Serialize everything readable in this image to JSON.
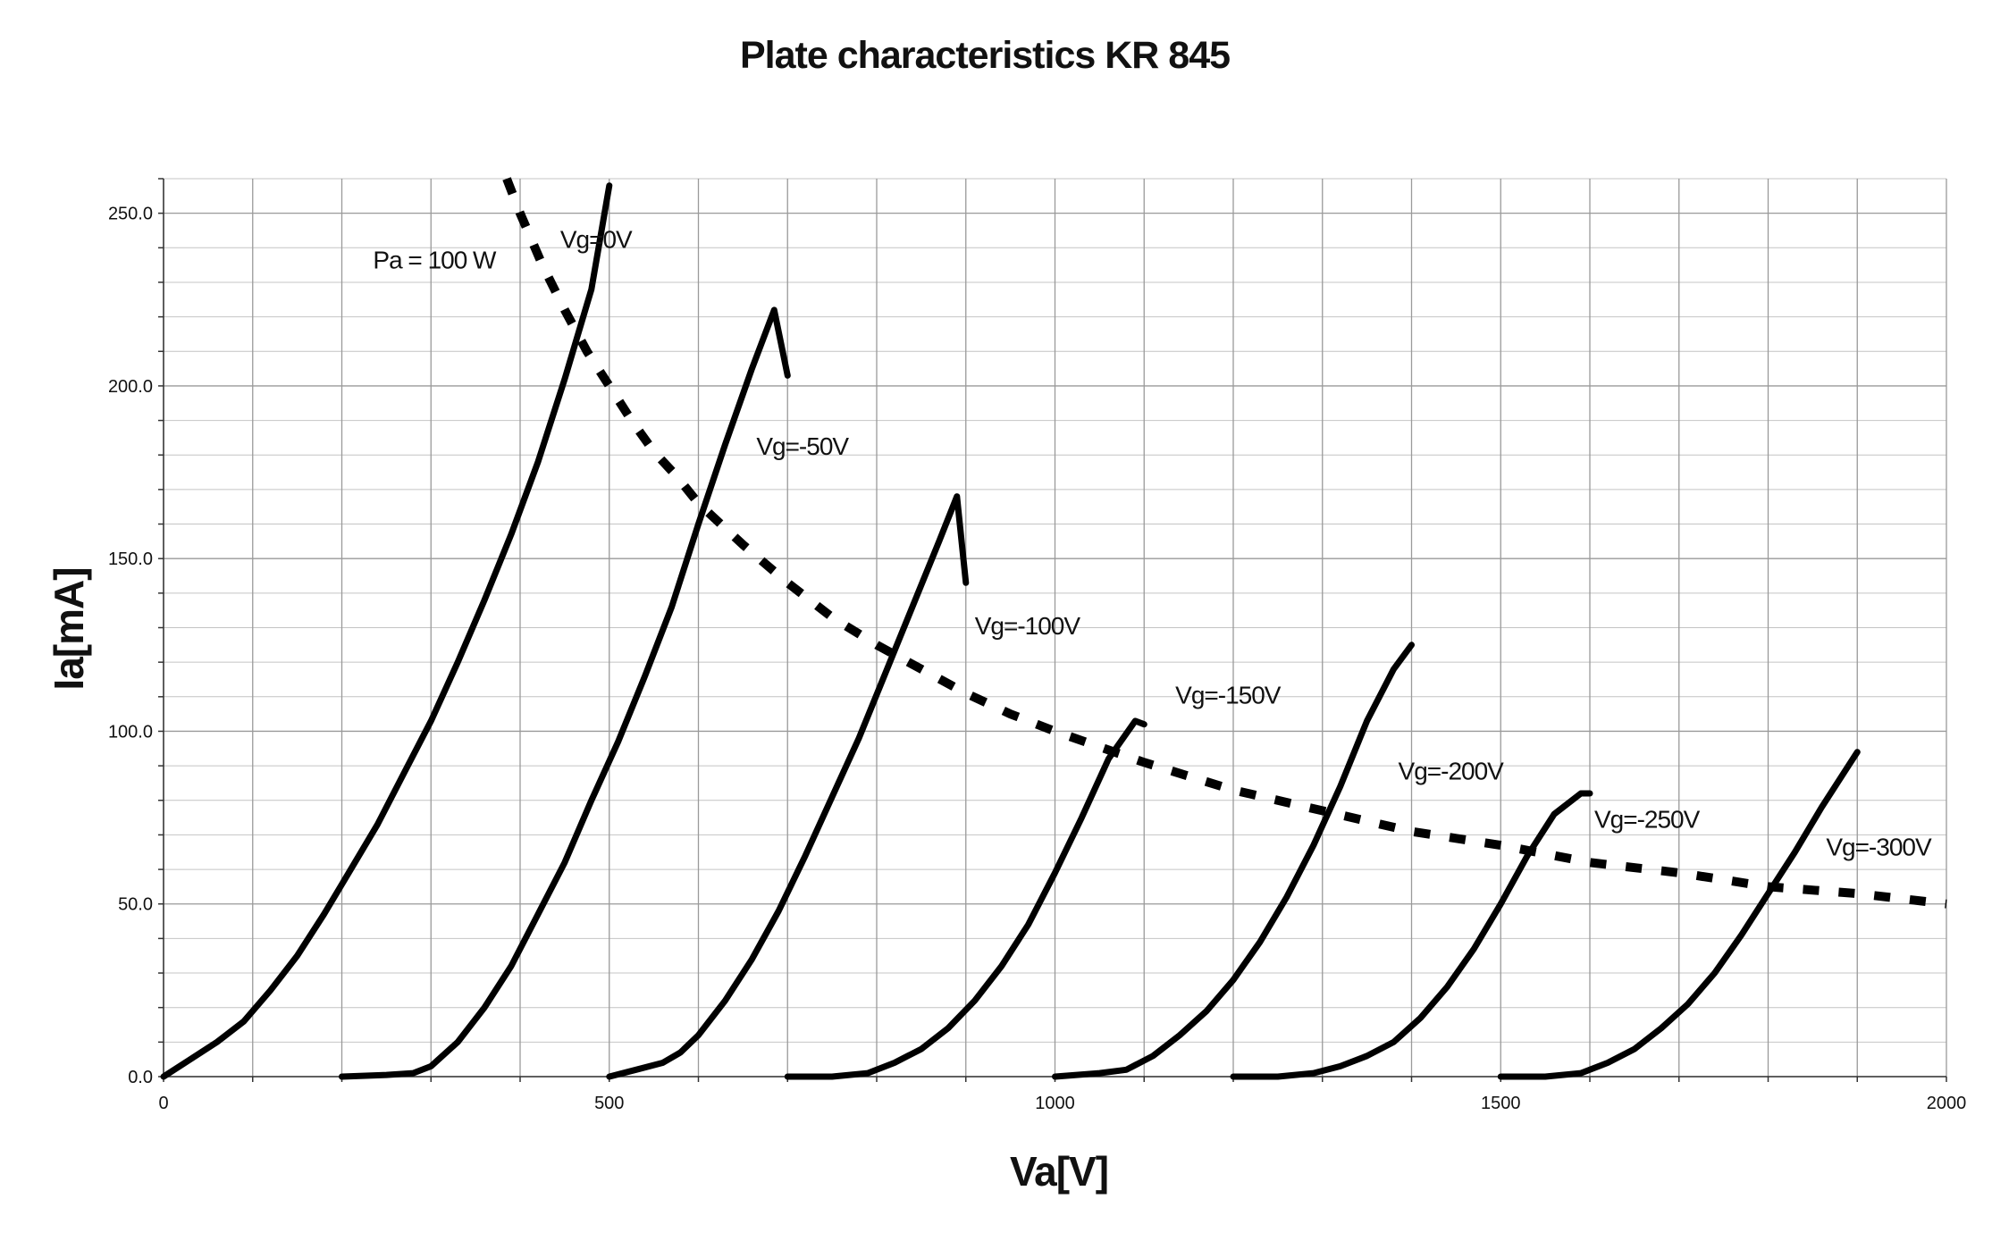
{
  "chart_data": {
    "type": "line",
    "title": "Plate characteristics KR 845",
    "xlabel": "Va[V]",
    "ylabel": "Ia[mA]",
    "xlim": [
      0,
      2000
    ],
    "ylim": [
      0,
      260
    ],
    "x_ticks": [
      {
        "value": 0,
        "label": "0"
      },
      {
        "value": 500,
        "label": "500"
      },
      {
        "value": 1000,
        "label": "1000"
      },
      {
        "value": 1500,
        "label": "1500"
      },
      {
        "value": 2000,
        "label": "2000"
      }
    ],
    "y_ticks": [
      {
        "value": 0,
        "label": "0.0"
      },
      {
        "value": 50,
        "label": "50.0"
      },
      {
        "value": 100,
        "label": "100.0"
      },
      {
        "value": 150,
        "label": "150.0"
      },
      {
        "value": 200,
        "label": "200.0"
      },
      {
        "value": 250,
        "label": "250.0"
      }
    ],
    "grid": {
      "major": true,
      "minor": true,
      "x_major_step": 100,
      "y_major_step": 50,
      "y_minor_step": 10
    },
    "series": [
      {
        "name": "Vg=0V",
        "label": "Vg=0V",
        "line": "solid",
        "points": [
          [
            0,
            0
          ],
          [
            30,
            5
          ],
          [
            60,
            10
          ],
          [
            90,
            16
          ],
          [
            120,
            25
          ],
          [
            150,
            35
          ],
          [
            180,
            47
          ],
          [
            210,
            60
          ],
          [
            240,
            73
          ],
          [
            270,
            88
          ],
          [
            300,
            103
          ],
          [
            330,
            120
          ],
          [
            360,
            138
          ],
          [
            390,
            157
          ],
          [
            420,
            178
          ],
          [
            450,
            202
          ],
          [
            480,
            228
          ],
          [
            500,
            258
          ]
        ]
      },
      {
        "name": "Vg=-50V",
        "label": "Vg=-50V",
        "line": "solid",
        "points": [
          [
            200,
            0
          ],
          [
            250,
            0.5
          ],
          [
            280,
            1
          ],
          [
            300,
            3
          ],
          [
            330,
            10
          ],
          [
            360,
            20
          ],
          [
            390,
            32
          ],
          [
            420,
            47
          ],
          [
            450,
            62
          ],
          [
            480,
            80
          ],
          [
            510,
            97
          ],
          [
            540,
            116
          ],
          [
            570,
            136
          ],
          [
            600,
            160
          ],
          [
            630,
            183
          ],
          [
            660,
            205
          ],
          [
            685,
            222
          ],
          [
            700,
            203
          ]
        ]
      },
      {
        "name": "Vg=-100V",
        "label": "Vg=-100V",
        "line": "solid",
        "points": [
          [
            500,
            0
          ],
          [
            530,
            2
          ],
          [
            560,
            4
          ],
          [
            580,
            7
          ],
          [
            600,
            12
          ],
          [
            630,
            22
          ],
          [
            660,
            34
          ],
          [
            690,
            48
          ],
          [
            720,
            64
          ],
          [
            750,
            81
          ],
          [
            780,
            98
          ],
          [
            810,
            117
          ],
          [
            840,
            136
          ],
          [
            870,
            155
          ],
          [
            890,
            168
          ],
          [
            900,
            143
          ]
        ]
      },
      {
        "name": "Vg=-150V",
        "label": "Vg=-150V",
        "line": "solid",
        "points": [
          [
            700,
            0
          ],
          [
            750,
            0
          ],
          [
            790,
            1
          ],
          [
            820,
            4
          ],
          [
            850,
            8
          ],
          [
            880,
            14
          ],
          [
            910,
            22
          ],
          [
            940,
            32
          ],
          [
            970,
            44
          ],
          [
            1000,
            59
          ],
          [
            1030,
            75
          ],
          [
            1060,
            92
          ],
          [
            1090,
            103
          ],
          [
            1100,
            102
          ]
        ]
      },
      {
        "name": "Vg=-200V",
        "label": "Vg=-200V",
        "line": "solid",
        "points": [
          [
            1000,
            0
          ],
          [
            1050,
            1
          ],
          [
            1080,
            2
          ],
          [
            1110,
            6
          ],
          [
            1140,
            12
          ],
          [
            1170,
            19
          ],
          [
            1200,
            28
          ],
          [
            1230,
            39
          ],
          [
            1260,
            52
          ],
          [
            1290,
            67
          ],
          [
            1320,
            84
          ],
          [
            1350,
            103
          ],
          [
            1380,
            118
          ],
          [
            1400,
            125
          ]
        ]
      },
      {
        "name": "Vg=-250V",
        "label": "Vg=-250V",
        "line": "solid",
        "points": [
          [
            1200,
            0
          ],
          [
            1250,
            0
          ],
          [
            1290,
            1
          ],
          [
            1320,
            3
          ],
          [
            1350,
            6
          ],
          [
            1380,
            10
          ],
          [
            1410,
            17
          ],
          [
            1440,
            26
          ],
          [
            1470,
            37
          ],
          [
            1500,
            50
          ],
          [
            1530,
            64
          ],
          [
            1560,
            76
          ],
          [
            1590,
            82
          ],
          [
            1600,
            82
          ]
        ]
      },
      {
        "name": "Vg=-300V",
        "label": "Vg=-300V",
        "line": "solid",
        "points": [
          [
            1500,
            0
          ],
          [
            1550,
            0
          ],
          [
            1590,
            1
          ],
          [
            1620,
            4
          ],
          [
            1650,
            8
          ],
          [
            1680,
            14
          ],
          [
            1710,
            21
          ],
          [
            1740,
            30
          ],
          [
            1770,
            41
          ],
          [
            1800,
            53
          ],
          [
            1830,
            65
          ],
          [
            1860,
            78
          ],
          [
            1890,
            90
          ],
          [
            1900,
            94
          ]
        ]
      },
      {
        "name": "Pa = 100 W",
        "label": "Pa = 100 W",
        "line": "dashed",
        "points": [
          [
            385,
            260
          ],
          [
            400,
            250
          ],
          [
            425,
            235
          ],
          [
            450,
            222
          ],
          [
            475,
            210
          ],
          [
            500,
            200
          ],
          [
            525,
            190
          ],
          [
            550,
            181
          ],
          [
            575,
            174
          ],
          [
            600,
            166
          ],
          [
            650,
            154
          ],
          [
            700,
            143
          ],
          [
            750,
            133
          ],
          [
            800,
            125
          ],
          [
            850,
            118
          ],
          [
            900,
            111
          ],
          [
            950,
            105
          ],
          [
            1000,
            100
          ],
          [
            1100,
            91
          ],
          [
            1200,
            83
          ],
          [
            1300,
            77
          ],
          [
            1400,
            71
          ],
          [
            1500,
            67
          ],
          [
            1600,
            62
          ],
          [
            1700,
            59
          ],
          [
            1800,
            55
          ],
          [
            1900,
            53
          ],
          [
            2000,
            50
          ]
        ]
      }
    ]
  }
}
